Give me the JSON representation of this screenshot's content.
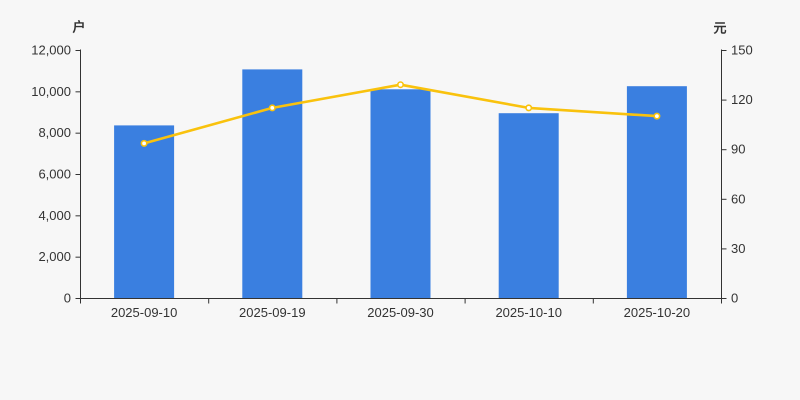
{
  "chart_data": {
    "type": "bar",
    "subtype": "bar-line-combo",
    "title": "",
    "categories": [
      "2025-09-10",
      "2025-09-19",
      "2025-09-30",
      "2025-10-10",
      "2025-10-20"
    ],
    "series": [
      {
        "name": "households-bars",
        "type": "bar",
        "axis": "left",
        "unit": "户",
        "color": "#3A7FE0",
        "values": [
          8350,
          11060,
          10100,
          8940,
          10250
        ]
      },
      {
        "name": "yuan-line",
        "type": "line",
        "axis": "right",
        "unit": "元",
        "color": "#F9C20D",
        "marker": "white-filled-circle",
        "values": [
          93.5,
          115,
          129,
          115,
          110
        ]
      }
    ],
    "left_axis": {
      "label": "户",
      "min": 0,
      "max": 12000,
      "ticks": [
        0,
        2000,
        4000,
        6000,
        8000,
        10000,
        12000
      ],
      "tick_labels": [
        "0",
        "2,000",
        "4,000",
        "6,000",
        "8,000",
        "10,000",
        "12,000"
      ]
    },
    "right_axis": {
      "label": "元",
      "min": 0,
      "max": 150,
      "ticks": [
        0,
        30,
        60,
        90,
        120,
        150
      ],
      "tick_labels": [
        "0",
        "30",
        "60",
        "90",
        "120",
        "150"
      ]
    },
    "grid": false,
    "legend_visible": false,
    "background": "#F7F7F7",
    "axis_color": "#333333",
    "text_color": "#333333"
  }
}
